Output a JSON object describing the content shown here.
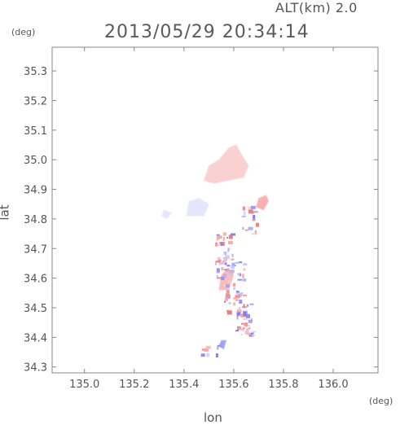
{
  "header": {
    "altitude_label": "ALT(km) 2.0",
    "timestamp": "2013/05/29 20:34:14"
  },
  "axes": {
    "x_label": "lon",
    "y_label": "lat",
    "x_unit": "(deg)",
    "y_unit": "(deg)",
    "x_ticks": [
      "135.0",
      "135.2",
      "135.4",
      "135.6",
      "135.8",
      "136.0"
    ],
    "y_ticks": [
      "35.3",
      "35.2",
      "35.1",
      "35.0",
      "34.9",
      "34.8",
      "34.7",
      "34.6",
      "34.5",
      "34.4",
      "34.3"
    ]
  },
  "colors": {
    "approaching": "#7b7bf0",
    "receding": "#f07b7b",
    "frame": "#888888"
  },
  "chart_data": {
    "type": "heatmap",
    "xlim": [
      134.87,
      136.18
    ],
    "ylim": [
      34.28,
      35.38
    ],
    "regions": [
      {
        "sign": "positive",
        "strength": 0.35,
        "polygon": [
          [
            135.48,
            34.93
          ],
          [
            135.5,
            34.98
          ],
          [
            135.54,
            35.0
          ],
          [
            135.58,
            35.04
          ],
          [
            135.61,
            35.05
          ],
          [
            135.63,
            35.02
          ],
          [
            135.66,
            34.98
          ],
          [
            135.64,
            34.94
          ],
          [
            135.58,
            34.93
          ],
          [
            135.52,
            34.92
          ]
        ]
      },
      {
        "sign": "positive",
        "strength": 0.6,
        "polygon": [
          [
            135.69,
            34.84
          ],
          [
            135.7,
            34.87
          ],
          [
            135.73,
            34.88
          ],
          [
            135.74,
            34.86
          ],
          [
            135.72,
            34.83
          ]
        ]
      },
      {
        "sign": "negative",
        "strength": 0.2,
        "polygon": [
          [
            135.41,
            34.81
          ],
          [
            135.42,
            34.86
          ],
          [
            135.46,
            34.87
          ],
          [
            135.5,
            34.85
          ],
          [
            135.48,
            34.81
          ]
        ]
      },
      {
        "sign": "negative",
        "strength": 0.2,
        "polygon": [
          [
            135.31,
            34.81
          ],
          [
            135.32,
            34.83
          ],
          [
            135.35,
            34.82
          ],
          [
            135.33,
            34.8
          ]
        ]
      },
      {
        "sign": "positive",
        "strength": 0.5,
        "polygon": [
          [
            135.54,
            34.56
          ],
          [
            135.55,
            34.61
          ],
          [
            135.57,
            34.63
          ],
          [
            135.6,
            34.61
          ],
          [
            135.58,
            34.56
          ]
        ]
      },
      {
        "sign": "negative",
        "strength": 0.7,
        "polygon": [
          [
            135.54,
            34.37
          ],
          [
            135.55,
            34.39
          ],
          [
            135.57,
            34.39
          ],
          [
            135.56,
            34.36
          ]
        ]
      }
    ],
    "speckle_clusters": [
      {
        "center": [
          135.56,
          34.68
        ],
        "spread": [
          0.035,
          0.08
        ],
        "count": 45
      },
      {
        "center": [
          135.6,
          34.58
        ],
        "spread": [
          0.04,
          0.09
        ],
        "count": 45
      },
      {
        "center": [
          135.64,
          34.46
        ],
        "spread": [
          0.035,
          0.06
        ],
        "count": 35
      },
      {
        "center": [
          135.66,
          34.8
        ],
        "spread": [
          0.03,
          0.05
        ],
        "count": 18
      },
      {
        "center": [
          135.5,
          34.36
        ],
        "spread": [
          0.04,
          0.015
        ],
        "count": 8
      }
    ]
  }
}
